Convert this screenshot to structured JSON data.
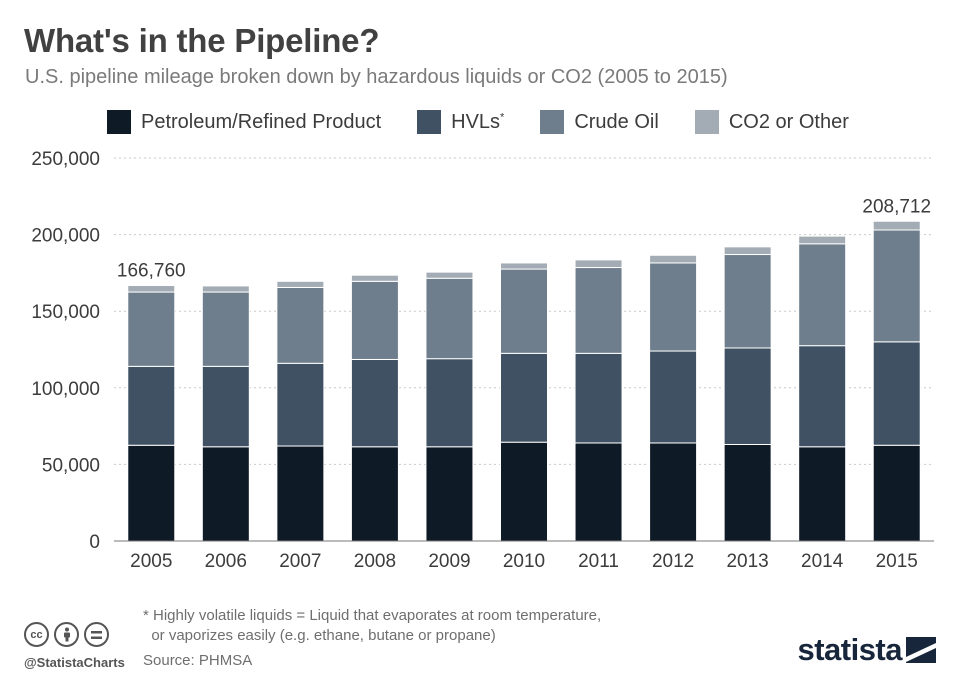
{
  "header": {
    "title": "What's in the Pipeline?",
    "subtitle": "U.S. pipeline mileage broken down by hazardous liquids or CO2 (2005 to 2015)"
  },
  "legend": [
    {
      "label": "Petroleum/Refined Product",
      "sup": "",
      "color": "#0f1a27"
    },
    {
      "label": "HVLs",
      "sup": "*",
      "color": "#3f5163"
    },
    {
      "label": "Crude Oil",
      "sup": "",
      "color": "#6e7e8c"
    },
    {
      "label": "CO2 or Other",
      "sup": "",
      "color": "#a3acb4"
    }
  ],
  "chart_data": {
    "type": "bar",
    "stacked": true,
    "categories": [
      "2005",
      "2006",
      "2007",
      "2008",
      "2009",
      "2010",
      "2011",
      "2012",
      "2013",
      "2014",
      "2015"
    ],
    "series": [
      {
        "name": "Petroleum/Refined Product",
        "color": "#0f1a27",
        "values": [
          62500,
          61500,
          62000,
          61500,
          61500,
          64500,
          64000,
          64000,
          63000,
          61500,
          62500
        ]
      },
      {
        "name": "HVLs",
        "color": "#3f5163",
        "values": [
          51500,
          52500,
          54000,
          57000,
          57500,
          58000,
          58500,
          60000,
          63000,
          66000,
          67500
        ]
      },
      {
        "name": "Crude Oil",
        "color": "#6e7e8c",
        "values": [
          48500,
          48500,
          49500,
          51000,
          52500,
          55000,
          56000,
          57500,
          61000,
          66500,
          73000
        ]
      },
      {
        "name": "CO2 or Other",
        "color": "#a3acb4",
        "values": [
          4260,
          4000,
          4000,
          4000,
          4000,
          4000,
          5000,
          5000,
          5000,
          5000,
          5712
        ]
      }
    ],
    "totals_labels": [
      {
        "category": "2005",
        "text": "166,760"
      },
      {
        "category": "2015",
        "text": "208,712"
      }
    ],
    "yticks": [
      0,
      50000,
      100000,
      150000,
      200000,
      250000
    ],
    "ytick_labels": [
      "0",
      "50,000",
      "100,000",
      "150,000",
      "200,000",
      "250,000"
    ],
    "ylim": [
      0,
      250000
    ],
    "grid": true,
    "legend_position": "top"
  },
  "footer": {
    "footnote_line1": "* Highly volatile liquids = Liquid that evaporates at room temperature,",
    "footnote_line2": "  or vaporizes easily (e.g. ethane, butane or propane)",
    "source": "Source: PHMSA",
    "handle": "@StatistaCharts",
    "logo_text": "statista",
    "icons": [
      "creative-commons-icon",
      "attribution-icon",
      "no-derivatives-icon"
    ]
  }
}
